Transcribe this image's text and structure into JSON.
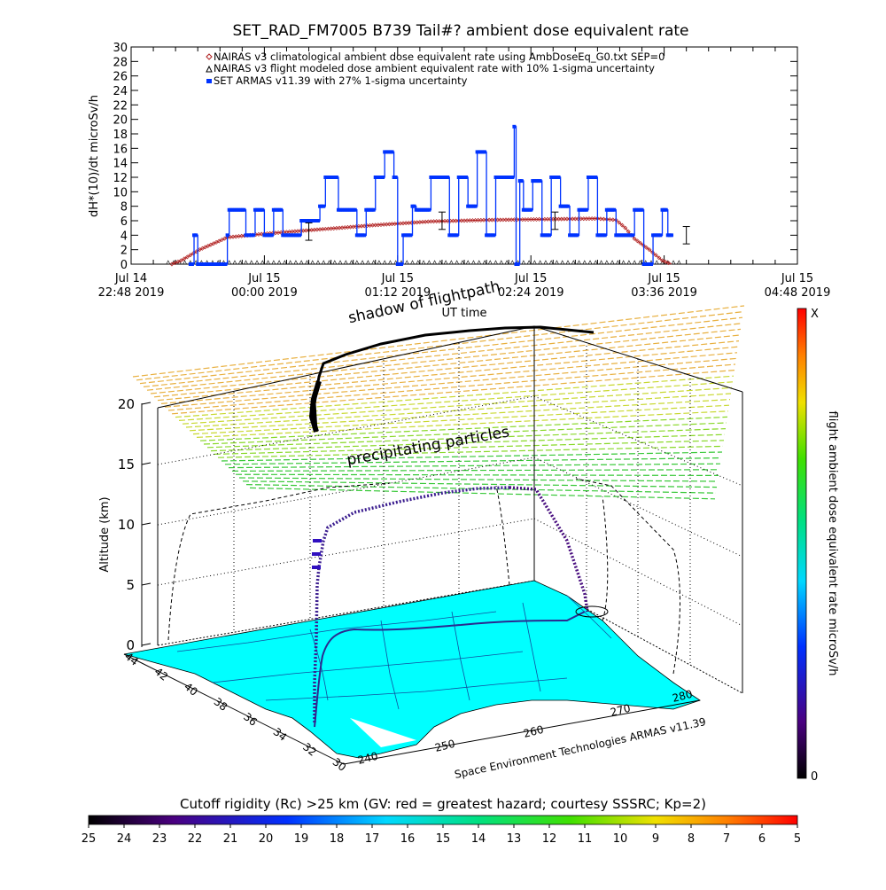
{
  "title": "SET_RAD_FM7005  B739 Tail#? ambient dose equivalent rate",
  "ylabel_top": "dH*(10)/dt microSv/h",
  "top_xticks": [
    {
      "line1": "Jul 14",
      "line2": "22:48 2019"
    },
    {
      "line1": "Jul 15",
      "line2": "00:00 2019"
    },
    {
      "line1": "Jul 15",
      "line2": "01:12 2019"
    },
    {
      "line1": "Jul 15",
      "line2": "02:24 2019"
    },
    {
      "line1": "Jul 15",
      "line2": "03:36 2019"
    },
    {
      "line1": "Jul 15",
      "line2": "04:48 2019"
    }
  ],
  "top_xlabel": "UT time",
  "legend": [
    "NAIRAS v3 climatological ambient dose equivalent rate using AmbDoseEq_G0.txt SEP=0",
    "NAIRAS v3 flight modeled dose ambient equivalent rate with 10% 1-sigma uncertainty",
    "SET ARMAS v11.39 with 27% 1-sigma uncertainty"
  ],
  "shadow_label": "shadow of flightpath",
  "precip_label": "precipitating particles",
  "alt_label": "Altitude (km)",
  "alt_ticks": [
    "0",
    "5",
    "10",
    "15",
    "20"
  ],
  "lat_ticks": [
    "44",
    "42",
    "40",
    "38",
    "36",
    "34",
    "32",
    "30"
  ],
  "lon_ticks": [
    "240",
    "250",
    "260",
    "270",
    "280"
  ],
  "credit": "Space Environment Technologies ARMAS v11.39",
  "colorbar_label": "flight ambient dose equivalent rate microSv/h",
  "colorbar_top": "X",
  "colorbar_bottom": "0",
  "cutoff_label": "Cutoff rigidity (Rc) >25 km (GV: red = greatest hazard; courtesy SSSRC; Kp=2)",
  "cutoff_ticks": [
    "25",
    "24",
    "23",
    "22",
    "21",
    "20",
    "19",
    "18",
    "17",
    "16",
    "15",
    "14",
    "13",
    "12",
    "11",
    "10",
    "9",
    "8",
    "7",
    "6",
    "5"
  ],
  "chart_data": {
    "type": "line",
    "title": "SET_RAD_FM7005  B739 Tail#? ambient dose equivalent rate",
    "ylabel": "dH*(10)/dt microSv/h",
    "xlabel": "UT time",
    "ylim": [
      0,
      30
    ],
    "yticks": [
      0,
      2,
      4,
      6,
      8,
      10,
      12,
      14,
      16,
      18,
      20,
      22,
      24,
      26,
      28,
      30
    ],
    "xlim": [
      "2019-07-14 22:48",
      "2019-07-15 04:48"
    ],
    "x_unit": "UT",
    "series": [
      {
        "name": "NAIRAS v3 climatological ambient dose equivalent rate using AmbDoseEq_G0.txt SEP=0",
        "color": "#b02020",
        "x": [
          "23:10",
          "23:15",
          "23:25",
          "23:40",
          "00:00",
          "00:30",
          "01:00",
          "01:12",
          "01:30",
          "02:00",
          "02:30",
          "03:00",
          "03:10",
          "03:15",
          "03:20",
          "03:28",
          "03:35",
          "03:40"
        ],
        "y": [
          0,
          0.5,
          2,
          3.7,
          4.2,
          4.8,
          5.4,
          5.6,
          5.9,
          6.1,
          6.2,
          6.3,
          6.1,
          5.0,
          3.5,
          2.0,
          0.5,
          0
        ]
      },
      {
        "name": "SET ARMAS v11.39 with 27% 1-sigma uncertainty",
        "color": "#0033ff",
        "x": [
          "23:20",
          "23:22",
          "23:24",
          "23:40",
          "23:41",
          "23:50",
          "23:55",
          "00:00",
          "00:05",
          "00:10",
          "00:20",
          "00:30",
          "00:33",
          "00:40",
          "00:50",
          "00:55",
          "01:00",
          "01:05",
          "01:10",
          "01:12",
          "01:15",
          "01:20",
          "01:22",
          "01:30",
          "01:40",
          "01:45",
          "01:50",
          "01:55",
          "02:00",
          "02:05",
          "02:10",
          "02:15",
          "02:16",
          "02:18",
          "02:20",
          "02:25",
          "02:30",
          "02:35",
          "02:40",
          "02:45",
          "02:50",
          "02:55",
          "03:00",
          "03:05",
          "03:10",
          "03:15",
          "03:20",
          "03:25",
          "03:30",
          "03:35",
          "03:38",
          "03:41"
        ],
        "y": [
          0,
          4,
          0,
          4,
          7.5,
          4,
          7.5,
          4,
          7.5,
          4,
          6,
          8,
          12,
          7.5,
          4,
          7.5,
          12,
          15.5,
          12,
          0,
          4,
          8,
          7.5,
          12,
          4,
          12,
          8,
          15.5,
          4,
          12,
          12,
          19,
          0,
          11.5,
          7.5,
          11.5,
          4,
          12,
          8,
          4,
          7.5,
          12,
          4,
          7.5,
          4,
          4,
          7.5,
          0,
          4,
          7.5,
          4,
          4
        ]
      }
    ],
    "errorbars_at": [
      "00:24",
      "01:36",
      "02:37",
      "03:48"
    ],
    "colorbar": {
      "label": "flight ambient dose equivalent rate microSv/h",
      "min": "0",
      "max": "X"
    },
    "cutoff_colorbar": {
      "label": "Cutoff rigidity (Rc) >25 km (GV: red = greatest hazard; courtesy SSSRC; Kp=2)",
      "min": 5,
      "max": 25
    },
    "altitude_axis": {
      "label": "Altitude (km)",
      "ticks": [
        0,
        5,
        10,
        15,
        20
      ]
    },
    "latitude_ticks": [
      30,
      32,
      34,
      36,
      38,
      40,
      42,
      44
    ],
    "longitude_ticks": [
      240,
      250,
      260,
      270,
      280
    ]
  }
}
